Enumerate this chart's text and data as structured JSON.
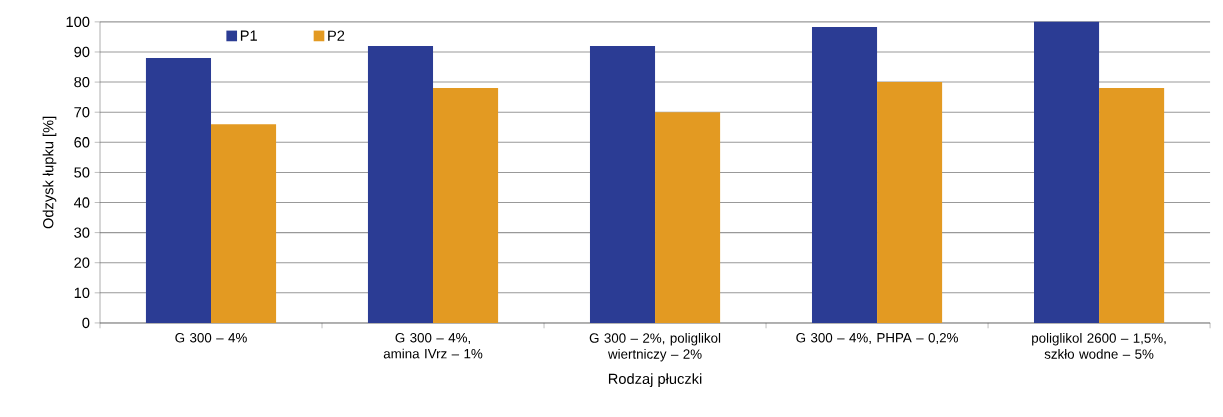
{
  "chart_data": {
    "type": "bar",
    "xlabel": "Rodzaj płuczki",
    "ylabel": "Odzysk łupku [%]",
    "categories": [
      "G 300 – 4%",
      "G 300 – 4%, amina IVrz – 1%",
      "G 300 – 2%, poliglikol wiertniczy – 2%",
      "G 300 – 4%, PHPA – 0,2%",
      "poliglikol 2600 – 1,5%, szkło wodne – 5%"
    ],
    "series": [
      {
        "name": "P1",
        "color": "#2b3c94",
        "values": [
          88,
          92,
          92,
          98.3,
          100
        ]
      },
      {
        "name": "P2",
        "color": "#e39a22",
        "values": [
          66,
          78,
          70,
          80,
          78
        ]
      }
    ],
    "ylim": [
      0,
      100
    ],
    "yticks": [
      0,
      10,
      20,
      30,
      40,
      50,
      60,
      70,
      80,
      90,
      100
    ],
    "grid": "y",
    "legend": "top left"
  }
}
